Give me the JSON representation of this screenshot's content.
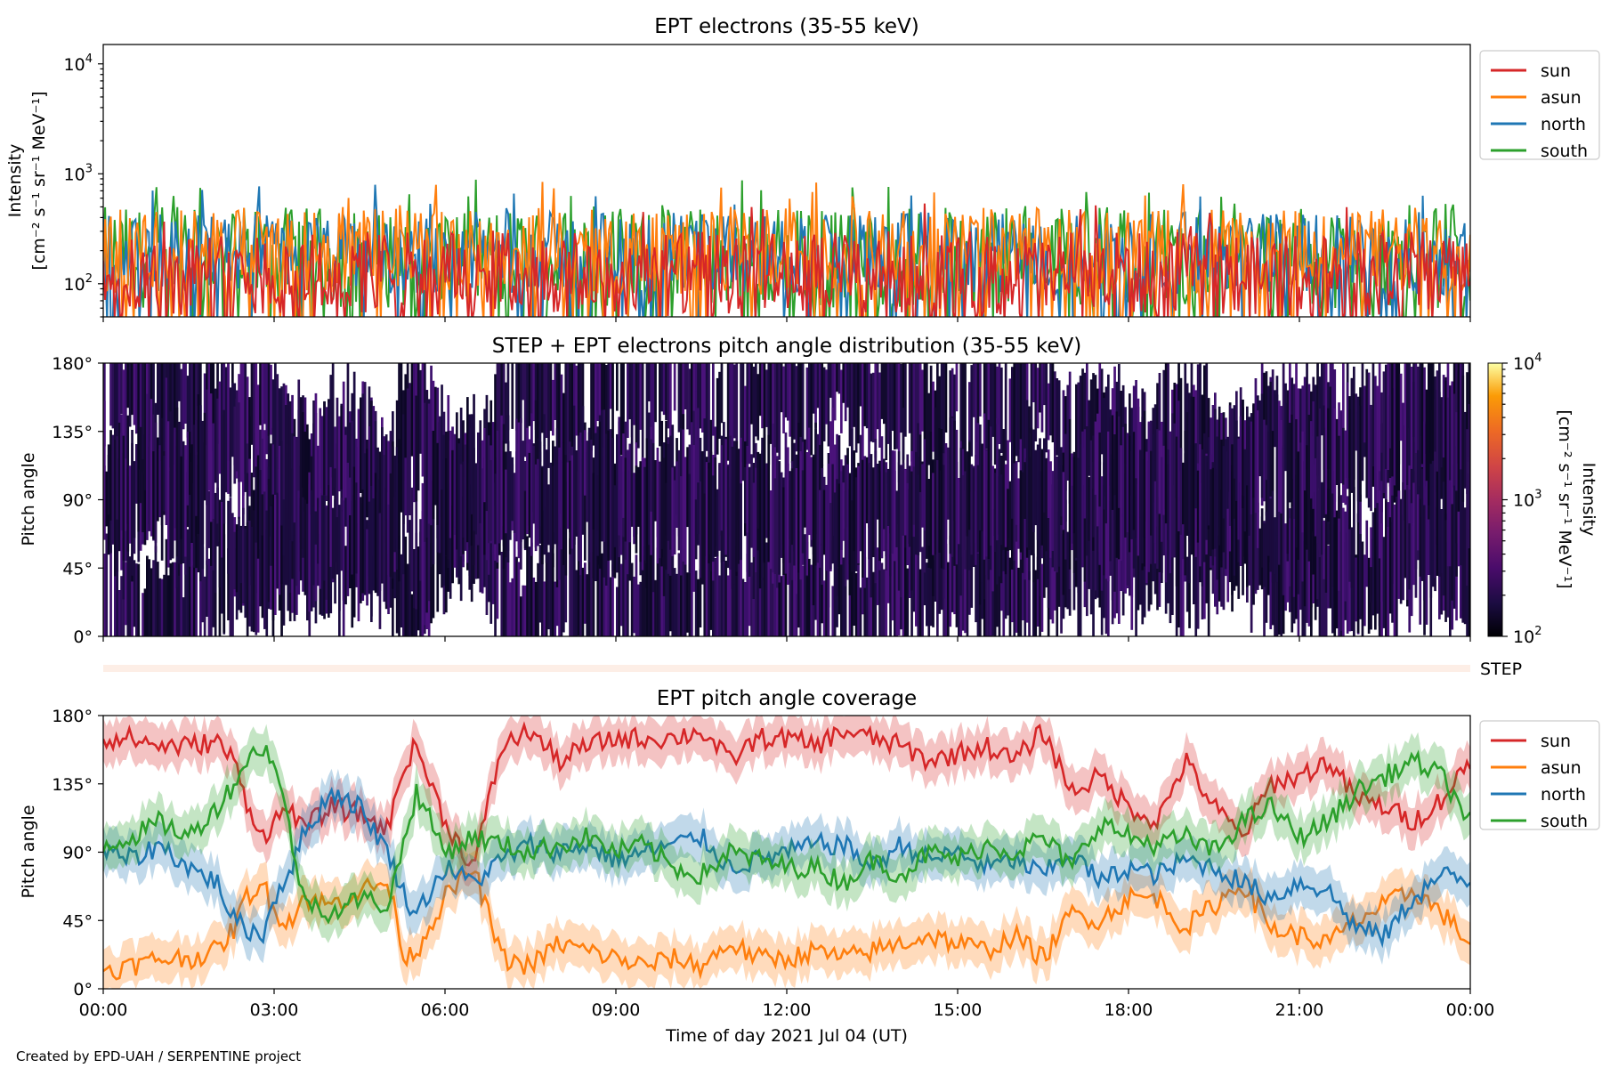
{
  "figure": {
    "credit": "Created by EPD-UAH / SERPENTINE project",
    "xlabel": "Time of day 2021 Jul 04 (UT)",
    "x_tick_labels": [
      "00:00",
      "03:00",
      "06:00",
      "09:00",
      "12:00",
      "15:00",
      "18:00",
      "21:00",
      "00:00"
    ]
  },
  "chart_data": [
    {
      "type": "line",
      "title": "EPT electrons (35-55 keV)",
      "ylabel_line1": "Intensity",
      "ylabel_line2": "[cm⁻² s⁻¹ sr⁻¹ MeV⁻¹]",
      "yscale": "log",
      "ylim": [
        50,
        15000
      ],
      "y_ticks": [
        {
          "value": 100,
          "base": "10",
          "exp": "2"
        },
        {
          "value": 1000,
          "base": "10",
          "exp": "3"
        },
        {
          "value": 10000,
          "base": "10",
          "exp": "4"
        }
      ],
      "x_range_hours": [
        0,
        24
      ],
      "legend_position": "outside-right",
      "series": [
        {
          "name": "sun",
          "color": "#d62728",
          "typical_range": [
            50,
            300
          ]
        },
        {
          "name": "asun",
          "color": "#ff7f0e",
          "typical_range": [
            80,
            500
          ]
        },
        {
          "name": "north",
          "color": "#1f77b4",
          "typical_range": [
            80,
            450
          ]
        },
        {
          "name": "south",
          "color": "#2ca02c",
          "typical_range": [
            60,
            500
          ]
        }
      ]
    },
    {
      "type": "heatmap",
      "title": "STEP + EPT electrons pitch angle distribution (35-55 keV)",
      "ylabel": "Pitch angle",
      "ylim": [
        0,
        180
      ],
      "y_tick_labels": [
        "0°",
        "45°",
        "90°",
        "135°",
        "180°"
      ],
      "x_range_hours": [
        0,
        24
      ],
      "colorbar": {
        "scale": "log",
        "range": [
          100,
          10000
        ],
        "ticks": [
          {
            "value": 100,
            "base": "10",
            "exp": "2"
          },
          {
            "value": 1000,
            "base": "10",
            "exp": "3"
          },
          {
            "value": 10000,
            "base": "10",
            "exp": "4"
          }
        ],
        "label_line1": "Intensity",
        "label_line2": "[cm⁻² s⁻¹ sr⁻¹ MeV⁻¹]",
        "colormap": "inferno"
      },
      "step_strip_label": "STEP"
    },
    {
      "type": "line",
      "title": "EPT pitch angle coverage",
      "ylabel": "Pitch angle",
      "ylim": [
        0,
        180
      ],
      "y_tick_labels": [
        "0°",
        "45°",
        "90°",
        "135°",
        "180°"
      ],
      "x_range_hours": [
        0,
        24
      ],
      "legend_position": "outside-right",
      "series": [
        {
          "name": "sun",
          "color": "#d62728",
          "x": [
            0,
            0.5,
            1,
            1.5,
            2,
            2.3,
            2.5,
            2.8,
            3,
            3.3,
            3.5,
            4,
            4.5,
            5,
            5.3,
            5.5,
            6,
            6.5,
            7,
            7.5,
            8,
            8.5,
            9,
            9.5,
            10,
            10.5,
            11,
            11.5,
            12,
            12.5,
            13,
            13.5,
            14,
            14.5,
            15,
            15.5,
            16,
            16.5,
            17,
            17.5,
            18,
            18.5,
            19,
            19.5,
            20,
            20.5,
            21,
            21.5,
            22,
            22.5,
            23,
            23.5,
            24
          ],
          "y": [
            165,
            165,
            160,
            160,
            163,
            150,
            125,
            100,
            110,
            120,
            105,
            120,
            115,
            105,
            150,
            160,
            110,
            80,
            160,
            170,
            150,
            160,
            165,
            165,
            165,
            170,
            150,
            165,
            165,
            160,
            170,
            165,
            160,
            150,
            155,
            160,
            150,
            170,
            130,
            140,
            120,
            110,
            150,
            120,
            100,
            135,
            140,
            150,
            125,
            120,
            110,
            125,
            150
          ]
        },
        {
          "name": "asun",
          "color": "#ff7f0e",
          "x": [
            0,
            0.5,
            1,
            1.5,
            2,
            2.3,
            2.5,
            2.8,
            3,
            3.3,
            3.5,
            4,
            4.5,
            5,
            5.3,
            5.5,
            6,
            6.5,
            7,
            7.5,
            8,
            8.5,
            9,
            9.5,
            10,
            10.5,
            11,
            11.5,
            12,
            12.5,
            13,
            13.5,
            14,
            14.5,
            15,
            15.5,
            16,
            16.5,
            17,
            17.5,
            18,
            18.5,
            19,
            19.5,
            20,
            20.5,
            21,
            21.5,
            22,
            22.5,
            23,
            23.5,
            24
          ],
          "y": [
            12,
            15,
            20,
            20,
            25,
            40,
            60,
            70,
            50,
            45,
            60,
            55,
            65,
            70,
            20,
            25,
            60,
            80,
            20,
            15,
            30,
            25,
            20,
            15,
            20,
            15,
            30,
            20,
            20,
            25,
            20,
            25,
            30,
            35,
            30,
            25,
            35,
            20,
            50,
            45,
            60,
            60,
            40,
            55,
            70,
            40,
            35,
            30,
            45,
            55,
            65,
            50,
            30
          ]
        },
        {
          "name": "north",
          "color": "#1f77b4",
          "x": [
            0,
            0.5,
            1,
            1.5,
            2,
            2.3,
            2.5,
            2.8,
            3,
            3.3,
            3.5,
            4,
            4.5,
            5,
            5.3,
            5.5,
            6,
            6.5,
            7,
            7.5,
            8,
            8.5,
            9,
            9.5,
            10,
            10.5,
            11,
            11.5,
            12,
            12.5,
            13,
            13.5,
            14,
            14.5,
            15,
            15.5,
            16,
            16.5,
            17,
            17.5,
            18,
            18.5,
            19,
            19.5,
            20,
            20.5,
            21,
            21.5,
            22,
            22.5,
            23,
            23.5,
            24
          ],
          "y": [
            90,
            85,
            95,
            80,
            70,
            45,
            40,
            35,
            60,
            80,
            100,
            130,
            120,
            90,
            60,
            50,
            80,
            70,
            85,
            95,
            90,
            95,
            85,
            90,
            95,
            100,
            80,
            85,
            90,
            95,
            95,
            80,
            95,
            85,
            90,
            80,
            85,
            75,
            90,
            70,
            80,
            75,
            85,
            80,
            70,
            60,
            70,
            65,
            40,
            35,
            60,
            75,
            70
          ]
        },
        {
          "name": "south",
          "color": "#2ca02c",
          "x": [
            0,
            0.5,
            1,
            1.5,
            2,
            2.3,
            2.5,
            2.8,
            3,
            3.3,
            3.5,
            4,
            4.5,
            5,
            5.3,
            5.5,
            6,
            6.5,
            7,
            7.5,
            8,
            8.5,
            9,
            9.5,
            10,
            10.5,
            11,
            11.5,
            12,
            12.5,
            13,
            13.5,
            14,
            14.5,
            15,
            15.5,
            16,
            16.5,
            17,
            17.5,
            18,
            18.5,
            19,
            19.5,
            20,
            20.5,
            21,
            21.5,
            22,
            22.5,
            23,
            23.5,
            24
          ],
          "y": [
            95,
            100,
            110,
            100,
            120,
            135,
            150,
            160,
            150,
            100,
            60,
            50,
            60,
            55,
            100,
            130,
            90,
            100,
            95,
            90,
            95,
            100,
            90,
            95,
            80,
            75,
            90,
            85,
            80,
            80,
            70,
            85,
            75,
            90,
            85,
            95,
            90,
            100,
            80,
            110,
            100,
            95,
            100,
            90,
            110,
            120,
            100,
            110,
            130,
            140,
            150,
            140,
            110
          ]
        }
      ]
    }
  ]
}
